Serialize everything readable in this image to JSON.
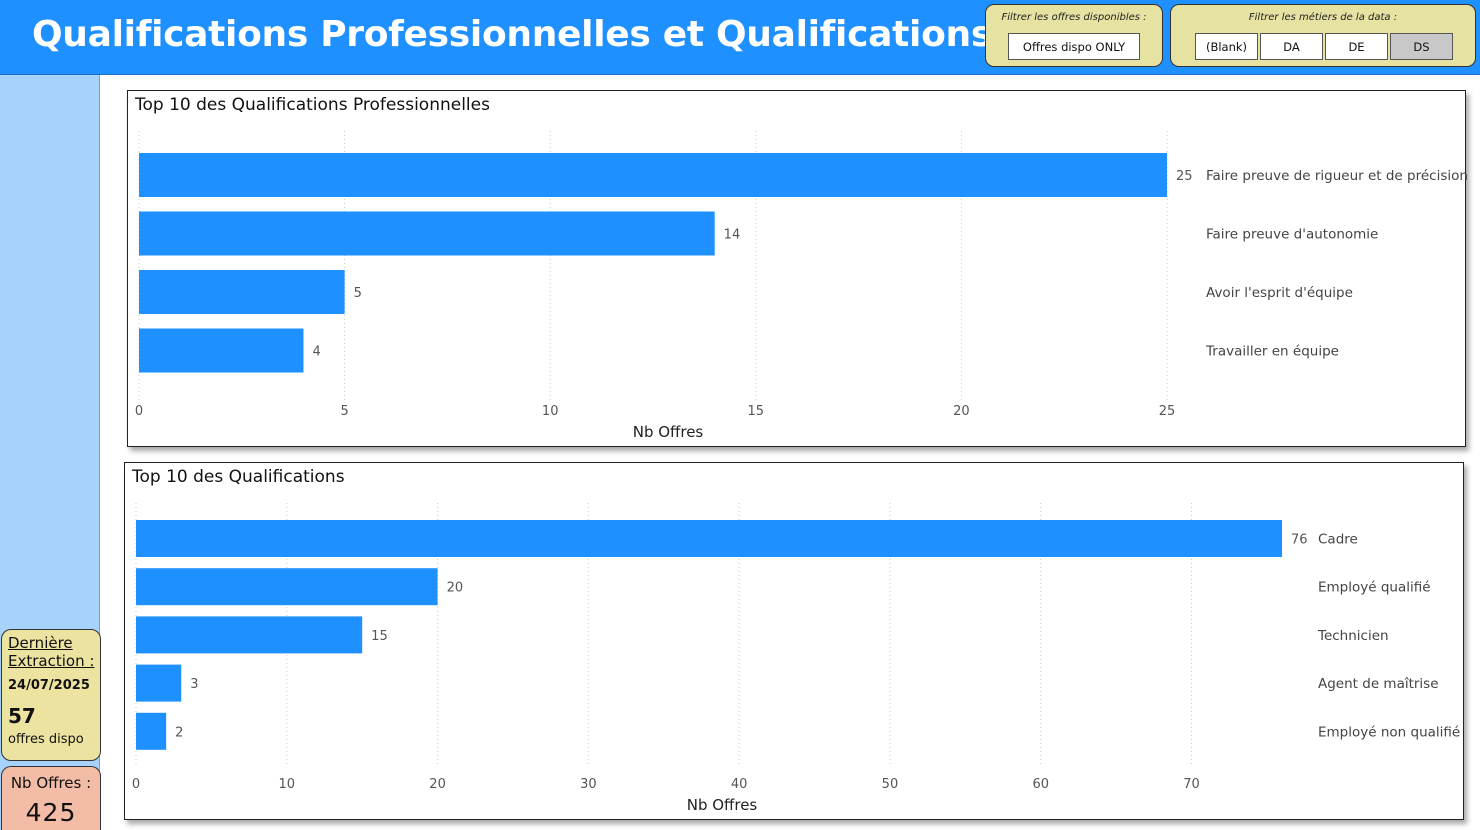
{
  "header": {
    "title": "Qualifications Professionnelles et Qualifications"
  },
  "filters": {
    "availability": {
      "label": "Filtrer les offres disponibles :",
      "button": "Offres dispo ONLY"
    },
    "jobs": {
      "label": "Filtrer les métiers de la data :",
      "options": [
        "(Blank)",
        "DA",
        "DE",
        "DS"
      ],
      "selected": "DS"
    }
  },
  "sidebar": {
    "extraction": {
      "label": "Dernière Extraction :",
      "date": "24/07/2025",
      "count": "57",
      "count_label": "offres dispo"
    },
    "total": {
      "label": "Nb Offres :",
      "value": "425"
    }
  },
  "colors": {
    "header": "#1e90ff",
    "bar": "#1e90ff",
    "sidebar": "#a6d2fb",
    "filter_bg": "#e6e2a2",
    "card_extract": "#ece3a0",
    "card_total": "#f2bca7"
  },
  "chart_data": [
    {
      "type": "bar",
      "orientation": "horizontal",
      "title": "Top 10 des Qualifications Professionnelles",
      "xlabel": "Nb Offres",
      "ylabel": "",
      "categories": [
        "Faire preuve de rigueur et de précision",
        "Faire preuve d'autonomie",
        "Avoir l'esprit d'équipe",
        "Travailler en équipe"
      ],
      "values": [
        25,
        14,
        5,
        4
      ],
      "xlim": [
        0,
        25
      ],
      "ticks": [
        0,
        5,
        10,
        15,
        20,
        25
      ],
      "grid": "vertical dotted",
      "data_labels": true
    },
    {
      "type": "bar",
      "orientation": "horizontal",
      "title": "Top 10 des Qualifications",
      "xlabel": "Nb Offres",
      "ylabel": "",
      "categories": [
        "Cadre",
        "Employé qualifié",
        "Technicien",
        "Agent de maîtrise",
        "Employé non qualifié"
      ],
      "values": [
        76,
        20,
        15,
        3,
        2
      ],
      "xlim": [
        0,
        76
      ],
      "ticks": [
        0,
        10,
        20,
        30,
        40,
        50,
        60,
        70
      ],
      "grid": "vertical dotted",
      "data_labels": true
    }
  ]
}
